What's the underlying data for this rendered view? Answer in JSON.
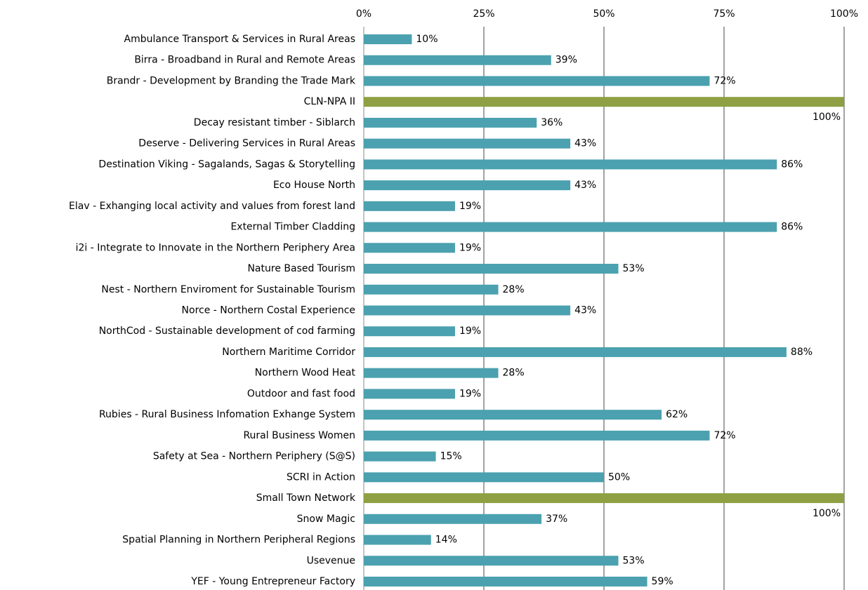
{
  "chart_data": {
    "type": "barh",
    "categories": [
      "Ambulance Transport & Services in Rural Areas",
      "Birra - Broadband in Rural and Remote Areas",
      "Brandr - Development by Branding the Trade Mark",
      "CLN-NPA II",
      "Decay resistant timber - Siblarch",
      "Deserve - Delivering Services in Rural Areas",
      "Destination Viking - Sagalands, Sagas & Storytelling",
      "Eco House North",
      "Elav - Exhanging local activity and values from forest land",
      "External Timber Cladding",
      "i2i - Integrate to Innovate in the Northern Periphery Area",
      "Nature Based Tourism",
      "Nest - Northern Enviroment for Sustainable Tourism",
      "Norce - Northern Costal Experience",
      "NorthCod - Sustainable development of cod farming",
      "Northern Maritime Corridor",
      "Northern Wood Heat",
      "Outdoor and fast food",
      "Rubies - Rural Business Infomation Exhange System",
      "Rural Business Women",
      "Safety at Sea - Northern Periphery (S@S)",
      "SCRI in Action",
      "Small Town Network",
      "Snow Magic",
      "Spatial Planning in Northern Peripheral Regions",
      "Usevenue",
      "YEF - Young Entrepreneur Factory"
    ],
    "values": [
      10,
      39,
      72,
      100,
      36,
      43,
      86,
      43,
      19,
      86,
      19,
      53,
      28,
      43,
      19,
      88,
      28,
      19,
      62,
      72,
      15,
      50,
      100,
      37,
      14,
      53,
      59
    ],
    "value_labels": [
      "10%",
      "39%",
      "72%",
      "100%",
      "36%",
      "43%",
      "86%",
      "43%",
      "19%",
      "86%",
      "19%",
      "53%",
      "28%",
      "43%",
      "19%",
      "88%",
      "28%",
      "19%",
      "62%",
      "72%",
      "15%",
      "50%",
      "100%",
      "37%",
      "14%",
      "53%",
      "59%"
    ],
    "colors": [
      "#4ba1af",
      "#4ba1af",
      "#4ba1af",
      "#8ea043",
      "#4ba1af",
      "#4ba1af",
      "#4ba1af",
      "#4ba1af",
      "#4ba1af",
      "#4ba1af",
      "#4ba1af",
      "#4ba1af",
      "#4ba1af",
      "#4ba1af",
      "#4ba1af",
      "#4ba1af",
      "#4ba1af",
      "#4ba1af",
      "#4ba1af",
      "#4ba1af",
      "#4ba1af",
      "#4ba1af",
      "#8ea043",
      "#4ba1af",
      "#4ba1af",
      "#4ba1af",
      "#4ba1af"
    ],
    "xlim": [
      0,
      100
    ],
    "xticks": [
      {
        "value": 0,
        "label": "0%"
      },
      {
        "value": 25,
        "label": "25%"
      },
      {
        "value": 50,
        "label": "50%"
      },
      {
        "value": 75,
        "label": "75%"
      },
      {
        "value": 100,
        "label": "100%"
      }
    ],
    "grid": true
  }
}
